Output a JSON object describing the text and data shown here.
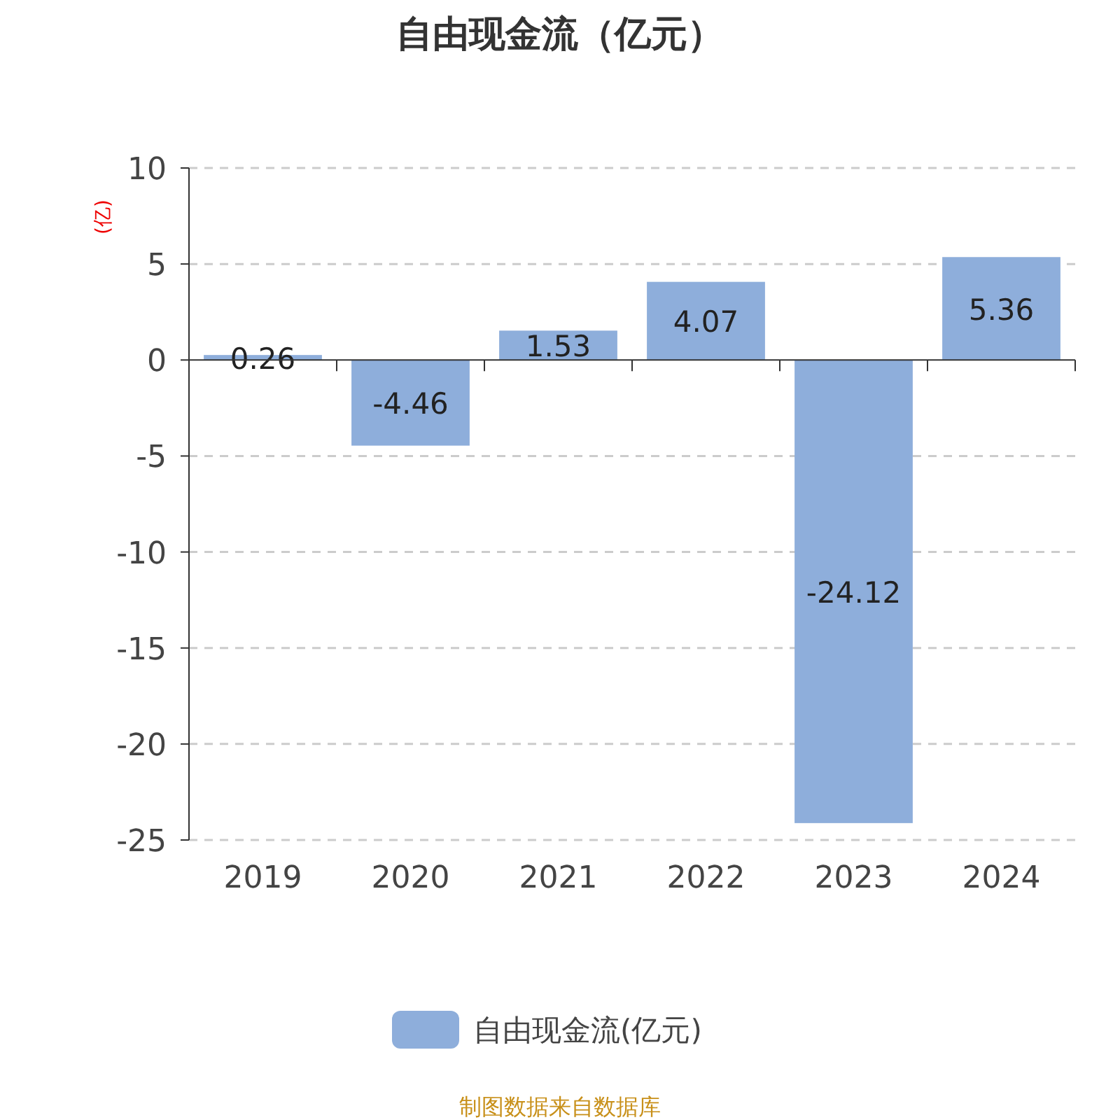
{
  "chart_data": {
    "type": "bar",
    "title": "自由现金流（亿元）",
    "ylabel": "(亿)",
    "categories": [
      "2019",
      "2020",
      "2021",
      "2022",
      "2023",
      "2024"
    ],
    "series": [
      {
        "name": "自由现金流(亿元)",
        "color": "#8eaedb",
        "values": [
          0.26,
          -4.46,
          1.53,
          4.07,
          -24.12,
          5.36
        ]
      }
    ],
    "ylim": [
      -25,
      10
    ],
    "yticks": [
      -25,
      -20,
      -15,
      -10,
      -5,
      0,
      5,
      10
    ],
    "grid": "y",
    "legend": "bottom",
    "data_labels": true,
    "annotations": [
      "制图数据来自数据库"
    ]
  }
}
